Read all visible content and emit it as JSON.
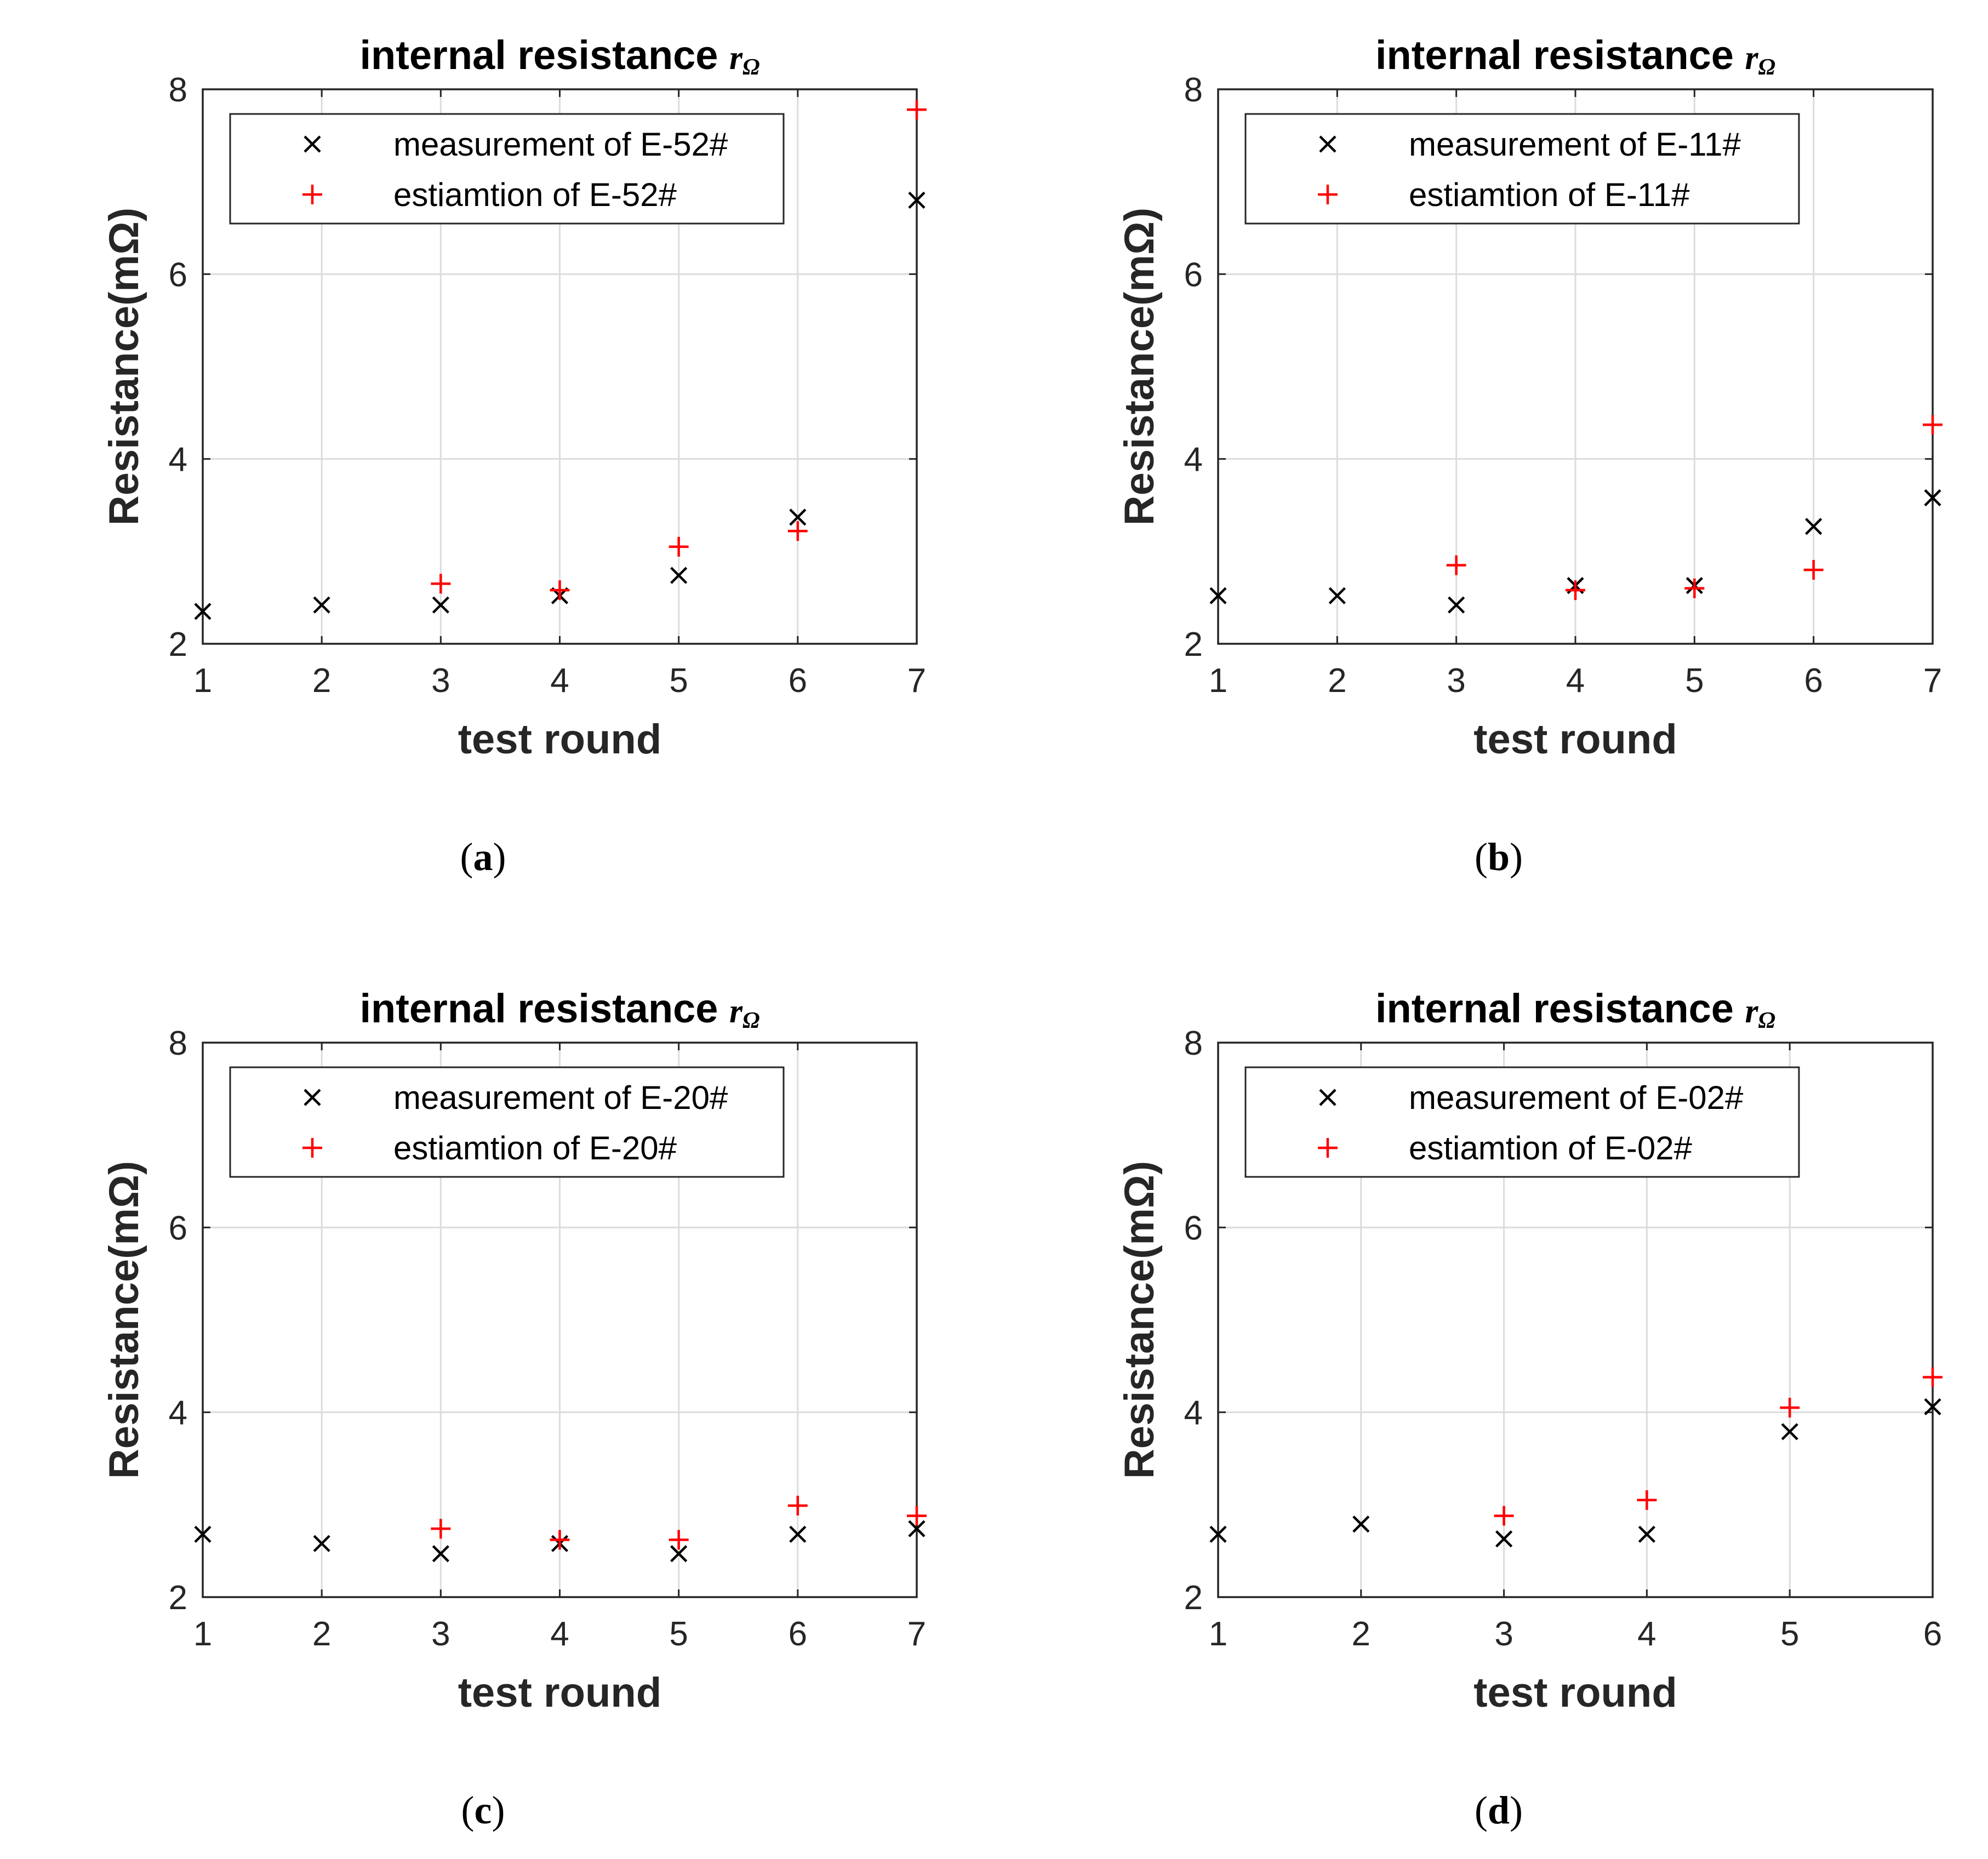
{
  "chart_data": [
    {
      "type": "scatter",
      "title": "internal resistance",
      "title_symbol": "r",
      "title_subscript": "Ω",
      "xlabel": "test round",
      "ylabel": "Resistance(mΩ)",
      "xlim": [
        1,
        7
      ],
      "ylim": [
        2,
        8
      ],
      "xticks": [
        "1",
        "2",
        "3",
        "4",
        "5",
        "6",
        "7"
      ],
      "yticks": [
        "2",
        "4",
        "6",
        "8"
      ],
      "grid": true,
      "legend_position": "top",
      "caption": "a",
      "series": [
        {
          "name": "measurement of E-52#",
          "marker": "x",
          "color": "#000000",
          "points": [
            [
              1,
              2.35
            ],
            [
              2,
              2.42
            ],
            [
              3,
              2.42
            ],
            [
              4,
              2.52
            ],
            [
              5,
              2.74
            ],
            [
              6,
              3.37
            ],
            [
              7,
              6.8
            ]
          ]
        },
        {
          "name": "estiamtion of E-52#",
          "marker": "+",
          "color": "#ff0000",
          "points": [
            [
              3,
              2.65
            ],
            [
              4,
              2.58
            ],
            [
              5,
              3.05
            ],
            [
              6,
              3.22
            ],
            [
              7,
              7.78
            ]
          ]
        }
      ]
    },
    {
      "type": "scatter",
      "title": "internal resistance",
      "title_symbol": "r",
      "title_subscript": "Ω",
      "xlabel": "test round",
      "ylabel": "Resistance(mΩ)",
      "xlim": [
        1,
        7
      ],
      "ylim": [
        2,
        8
      ],
      "xticks": [
        "1",
        "2",
        "3",
        "4",
        "5",
        "6",
        "7"
      ],
      "yticks": [
        "2",
        "4",
        "6",
        "8"
      ],
      "grid": true,
      "legend_position": "top",
      "caption": "b",
      "series": [
        {
          "name": "measurement of E-11#",
          "marker": "x",
          "color": "#000000",
          "points": [
            [
              1,
              2.52
            ],
            [
              2,
              2.52
            ],
            [
              3,
              2.42
            ],
            [
              4,
              2.63
            ],
            [
              5,
              2.63
            ],
            [
              6,
              3.27
            ],
            [
              7,
              3.58
            ]
          ]
        },
        {
          "name": "estiamtion of E-11#",
          "marker": "+",
          "color": "#ff0000",
          "points": [
            [
              3,
              2.85
            ],
            [
              4,
              2.58
            ],
            [
              5,
              2.6
            ],
            [
              6,
              2.8
            ],
            [
              7,
              4.37
            ]
          ]
        }
      ]
    },
    {
      "type": "scatter",
      "title": "internal resistance",
      "title_symbol": "r",
      "title_subscript": "Ω",
      "xlabel": "test round",
      "ylabel": "Resistance(mΩ)",
      "xlim": [
        1,
        7
      ],
      "ylim": [
        2,
        8
      ],
      "xticks": [
        "1",
        "2",
        "3",
        "4",
        "5",
        "6",
        "7"
      ],
      "yticks": [
        "2",
        "4",
        "6",
        "8"
      ],
      "grid": true,
      "legend_position": "top",
      "caption": "c",
      "series": [
        {
          "name": "measurement of E-20#",
          "marker": "x",
          "color": "#000000",
          "points": [
            [
              1,
              2.68
            ],
            [
              2,
              2.58
            ],
            [
              3,
              2.47
            ],
            [
              4,
              2.58
            ],
            [
              5,
              2.47
            ],
            [
              6,
              2.68
            ],
            [
              7,
              2.74
            ]
          ]
        },
        {
          "name": "estiamtion of E-20#",
          "marker": "+",
          "color": "#ff0000",
          "points": [
            [
              3,
              2.74
            ],
            [
              4,
              2.62
            ],
            [
              5,
              2.62
            ],
            [
              6,
              2.99
            ],
            [
              7,
              2.88
            ]
          ]
        }
      ]
    },
    {
      "type": "scatter",
      "title": "internal resistance",
      "title_symbol": "r",
      "title_subscript": "Ω",
      "xlabel": "test round",
      "ylabel": "Resistance(mΩ)",
      "xlim": [
        1,
        6
      ],
      "ylim": [
        2,
        8
      ],
      "xticks": [
        "1",
        "2",
        "3",
        "4",
        "5",
        "6"
      ],
      "yticks": [
        "2",
        "4",
        "6",
        "8"
      ],
      "grid": true,
      "legend_position": "top",
      "caption": "d",
      "series": [
        {
          "name": "measurement of E-02#",
          "marker": "x",
          "color": "#000000",
          "points": [
            [
              1,
              2.68
            ],
            [
              2,
              2.79
            ],
            [
              3,
              2.63
            ],
            [
              4,
              2.68
            ],
            [
              5,
              3.79
            ],
            [
              6,
              4.06
            ]
          ]
        },
        {
          "name": "estiamtion of E-02#",
          "marker": "+",
          "color": "#ff0000",
          "points": [
            [
              3,
              2.88
            ],
            [
              4,
              3.05
            ],
            [
              5,
              4.05
            ],
            [
              6,
              4.38
            ]
          ]
        }
      ]
    }
  ]
}
